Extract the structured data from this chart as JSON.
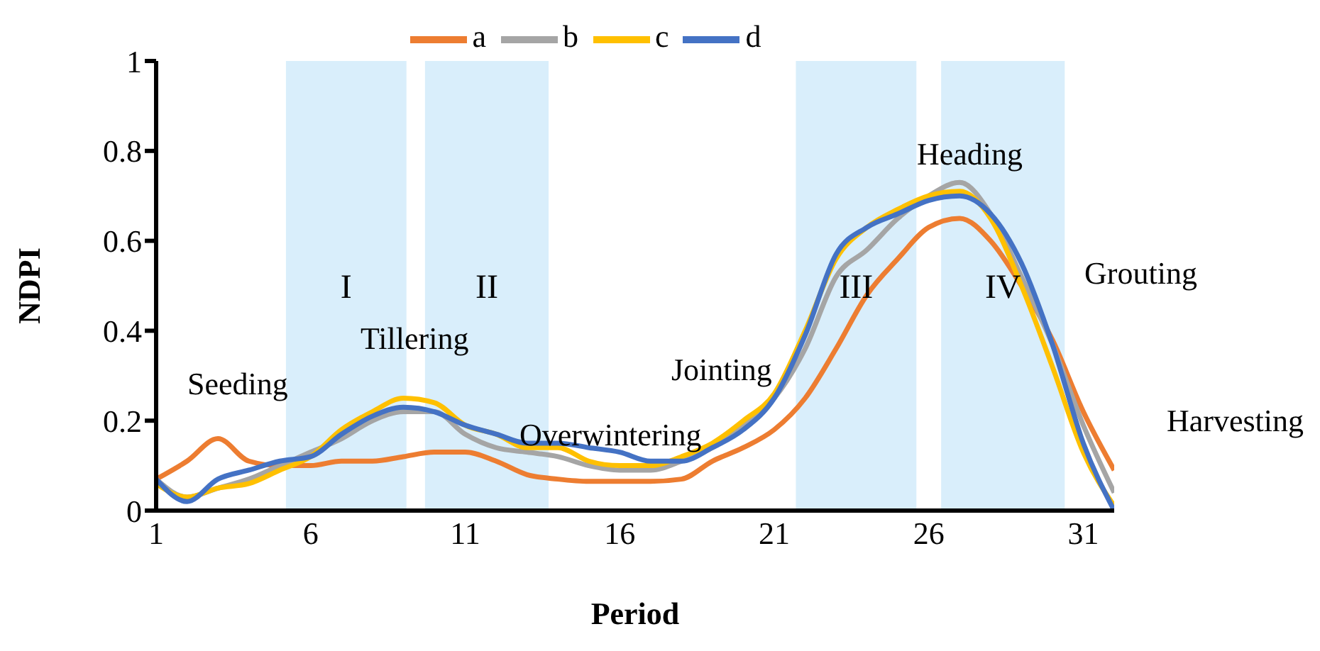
{
  "chart_data": {
    "type": "line",
    "xlabel": "Period",
    "ylabel": "NDPI",
    "x": [
      1,
      2,
      3,
      4,
      5,
      6,
      7,
      8,
      9,
      10,
      11,
      12,
      13,
      14,
      15,
      16,
      17,
      18,
      19,
      20,
      21,
      22,
      23,
      24,
      25,
      26,
      27,
      28,
      29,
      30,
      31,
      32
    ],
    "series": [
      {
        "name": "a",
        "color": "#ed7d31",
        "values": [
          0.07,
          0.11,
          0.16,
          0.11,
          0.1,
          0.1,
          0.11,
          0.11,
          0.12,
          0.13,
          0.13,
          0.11,
          0.08,
          0.07,
          0.065,
          0.065,
          0.065,
          0.07,
          0.11,
          0.14,
          0.18,
          0.25,
          0.36,
          0.48,
          0.56,
          0.63,
          0.65,
          0.6,
          0.5,
          0.38,
          0.22,
          0.09
        ]
      },
      {
        "name": "b",
        "color": "#a5a5a5",
        "values": [
          0.07,
          0.03,
          0.05,
          0.07,
          0.1,
          0.13,
          0.16,
          0.2,
          0.22,
          0.22,
          0.17,
          0.14,
          0.13,
          0.12,
          0.1,
          0.09,
          0.09,
          0.11,
          0.14,
          0.19,
          0.25,
          0.36,
          0.52,
          0.58,
          0.65,
          0.7,
          0.73,
          0.66,
          0.52,
          0.37,
          0.19,
          0.04
        ]
      },
      {
        "name": "c",
        "color": "#ffc000",
        "values": [
          0.06,
          0.03,
          0.05,
          0.06,
          0.09,
          0.12,
          0.18,
          0.22,
          0.25,
          0.24,
          0.19,
          0.17,
          0.14,
          0.14,
          0.11,
          0.1,
          0.1,
          0.12,
          0.15,
          0.2,
          0.26,
          0.4,
          0.56,
          0.63,
          0.67,
          0.7,
          0.71,
          0.65,
          0.5,
          0.32,
          0.13,
          0.01
        ]
      },
      {
        "name": "d",
        "color": "#4472c4",
        "values": [
          0.07,
          0.02,
          0.07,
          0.09,
          0.11,
          0.12,
          0.17,
          0.21,
          0.23,
          0.22,
          0.19,
          0.17,
          0.15,
          0.15,
          0.14,
          0.13,
          0.11,
          0.11,
          0.14,
          0.18,
          0.25,
          0.39,
          0.57,
          0.63,
          0.66,
          0.69,
          0.7,
          0.66,
          0.55,
          0.37,
          0.15,
          0.0
        ]
      }
    ],
    "xlim": [
      1,
      32
    ],
    "xticks": [
      1,
      6,
      11,
      16,
      21,
      26,
      31
    ],
    "ylim": [
      0,
      1
    ],
    "yticks": [
      0,
      0.2,
      0.4,
      0.6,
      0.8,
      1
    ],
    "bands": [
      {
        "axis": "x",
        "from": 5.2,
        "to": 9.1,
        "label": "I",
        "color": "#d9eefb"
      },
      {
        "axis": "x",
        "from": 9.7,
        "to": 13.7,
        "label": "II",
        "color": "#d9eefb"
      },
      {
        "axis": "x",
        "from": 21.7,
        "to": 25.6,
        "label": "III",
        "color": "#d9eefb"
      },
      {
        "axis": "x",
        "from": 26.4,
        "to": 30.4,
        "label": "IV",
        "color": "#d9eefb"
      }
    ],
    "annotations": [
      "Seeding",
      "Tillering",
      "Overwintering",
      "Jointing",
      "Heading",
      "Grouting",
      "Harvesting"
    ],
    "legend": "top",
    "grid": false,
    "marker": "none",
    "line_style": "solid"
  }
}
